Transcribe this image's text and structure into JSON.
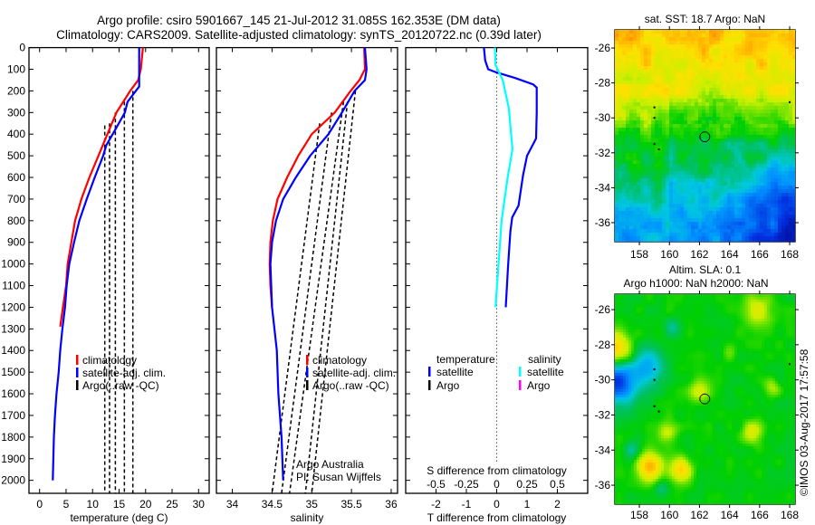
{
  "title": {
    "line1": "Argo profile: csiro 5901667_145 21-Jul-2012 31.085S 162.353E (DM data)",
    "line2": "Climatology: CARS2009. Satellite-adjusted climatology: synTS_20120722.nc (0.39d later)"
  },
  "watermark": "©IMOS 03-Aug-2017 17:57:58",
  "credits": {
    "line1": "Argo Australia",
    "line2": "PI: Susan Wijffels"
  },
  "chart_data": [
    {
      "id": "temperature",
      "type": "line",
      "xlabel": "temperature (deg C)",
      "ylabel": "",
      "xlim": [
        -2,
        32
      ],
      "ylim": [
        0,
        2060
      ],
      "xticks": [
        "0",
        "5",
        "10",
        "15",
        "20",
        "25",
        "30"
      ],
      "xtick_values": [
        0,
        5,
        10,
        15,
        20,
        25,
        30
      ],
      "yticks": [
        "0",
        "100",
        "200",
        "300",
        "400",
        "500",
        "600",
        "700",
        "800",
        "900",
        "1000",
        "1100",
        "1200",
        "1300",
        "1400",
        "1500",
        "1600",
        "1700",
        "1800",
        "1900",
        "2000"
      ],
      "ytick_values": [
        0,
        100,
        200,
        300,
        400,
        500,
        600,
        700,
        800,
        900,
        1000,
        1100,
        1200,
        1300,
        1400,
        1500,
        1600,
        1700,
        1800,
        1900,
        2000
      ],
      "series": [
        {
          "name": "climatology",
          "color": "#ff0000",
          "depth": [
            0,
            100,
            150,
            200,
            300,
            400,
            500,
            600,
            700,
            800,
            900,
            1000,
            1100,
            1200,
            1290
          ],
          "values": [
            19.5,
            19.1,
            18.6,
            17.1,
            14.5,
            12.8,
            11.1,
            9.4,
            7.9,
            6.7,
            6.0,
            5.3,
            5.0,
            4.4,
            3.9
          ]
        },
        {
          "name": "satellite-adj. clim.",
          "color": "#0000ff",
          "depth": [
            0,
            180,
            250,
            300,
            400,
            450,
            500,
            600,
            700,
            800,
            900,
            1000,
            1100,
            1200,
            1300,
            1400,
            1500,
            1600,
            1700,
            1800,
            1900,
            2000
          ],
          "values": [
            18.8,
            18.8,
            16.6,
            16.1,
            13.8,
            12.6,
            12.0,
            10.4,
            8.9,
            7.5,
            6.5,
            5.6,
            5.1,
            4.8,
            4.3,
            3.9,
            3.6,
            3.2,
            2.9,
            2.7,
            2.6,
            2.5
          ]
        }
      ],
      "argo": [
        {
          "depth": [
            360,
            2060
          ],
          "values": [
            12.3,
            12.3
          ]
        },
        {
          "depth": [
            350,
            2060
          ],
          "values": [
            13.2,
            13.2
          ]
        },
        {
          "depth": [
            300,
            2060
          ],
          "values": [
            14.3,
            14.3
          ]
        },
        {
          "depth": [
            250,
            2060
          ],
          "values": [
            16.0,
            16.0
          ]
        },
        {
          "depth": [
            200,
            2060
          ],
          "values": [
            17.6,
            17.6
          ]
        }
      ],
      "legend": [
        {
          "label": "climatology",
          "color": "#ff0000"
        },
        {
          "label": "satellite-adj. clim.",
          "color": "#0000ff"
        },
        {
          "label": "Argo(..raw -QC)",
          "color": "#000000"
        }
      ]
    },
    {
      "id": "salinity",
      "type": "line",
      "xlabel": "salinity",
      "xlim": [
        33.8,
        36.08
      ],
      "ylim": [
        0,
        2060
      ],
      "xticks": [
        "34",
        "34.5",
        "35",
        "35.5",
        "36"
      ],
      "xtick_values": [
        34,
        34.5,
        35,
        35.5,
        36
      ],
      "series": [
        {
          "name": "climatology",
          "color": "#ff0000",
          "depth": [
            0,
            100,
            150,
            200,
            300,
            400,
            500,
            600,
            700,
            800,
            900,
            1000,
            1100,
            1200
          ],
          "values": [
            35.66,
            35.67,
            35.6,
            35.49,
            35.29,
            35.0,
            34.83,
            34.69,
            34.57,
            34.51,
            34.48,
            34.47,
            34.48,
            34.5
          ]
        },
        {
          "name": "satellite-adj. clim.",
          "color": "#0000ff",
          "depth": [
            0,
            100,
            150,
            200,
            300,
            400,
            500,
            600,
            700,
            800,
            900,
            1000,
            1200,
            1400,
            1600,
            1800,
            2000
          ],
          "values": [
            35.67,
            35.69,
            35.67,
            35.54,
            35.38,
            35.21,
            34.98,
            34.8,
            34.64,
            34.55,
            34.5,
            34.48,
            34.5,
            34.56,
            34.58,
            34.62,
            34.64
          ]
        }
      ],
      "argo": [
        {
          "depth": [
            350,
            2060
          ],
          "values": [
            35.1,
            34.5
          ]
        },
        {
          "depth": [
            300,
            2060
          ],
          "values": [
            35.25,
            34.62
          ]
        },
        {
          "depth": [
            250,
            2060
          ],
          "values": [
            35.4,
            34.72
          ]
        },
        {
          "depth": [
            250,
            2060
          ],
          "values": [
            35.45,
            34.92
          ]
        },
        {
          "depth": [
            200,
            2060
          ],
          "values": [
            35.55,
            35.0
          ]
        }
      ],
      "legend": [
        {
          "label": "climatology",
          "color": "#ff0000"
        },
        {
          "label": "satellite-adj. clim.",
          "color": "#0000ff"
        },
        {
          "label": "Argo(..raw -QC)",
          "color": "#000000"
        }
      ]
    },
    {
      "id": "difference",
      "type": "line",
      "xlabel": "T difference from climatology",
      "xlabel2": "S difference from climatology",
      "xlim": [
        -3,
        3
      ],
      "xlim2": [
        -0.75,
        0.75
      ],
      "ylim": [
        0,
        2060
      ],
      "xticks": [
        "-2",
        "-1",
        "0",
        "1",
        "2"
      ],
      "xtick_values": [
        -2,
        -1,
        0,
        1,
        2
      ],
      "xticks2": [
        "-0.5",
        "-0.25",
        "0",
        "0.25",
        "0.5"
      ],
      "xtick_values2": [
        -0.5,
        -0.25,
        0,
        0.25,
        0.5
      ],
      "series": [
        {
          "name": "temperature satellite",
          "color": "#0000ff",
          "axis": "T",
          "depth": [
            0,
            60,
            100,
            115,
            140,
            170,
            185,
            300,
            420,
            500,
            590,
            730,
            785,
            850,
            1000,
            1200
          ],
          "values": [
            -0.42,
            -0.38,
            -0.28,
            0.0,
            0.6,
            1.2,
            1.32,
            1.32,
            1.3,
            1.0,
            0.87,
            0.72,
            0.51,
            0.45,
            0.38,
            0.3
          ]
        },
        {
          "name": "salinity satellite",
          "color": "#00ffff",
          "axis": "S",
          "depth": [
            0,
            80,
            150,
            280,
            470,
            600,
            800,
            1000,
            1200
          ],
          "values": [
            -0.015,
            -0.01,
            0.05,
            0.1,
            0.13,
            0.09,
            0.04,
            0.015,
            -0.01
          ]
        }
      ],
      "legend": {
        "temperature_header": "temperature",
        "salinity_header": "salinity",
        "items": [
          {
            "label": "satellite",
            "color": "#0000ff"
          },
          {
            "label": "Argo",
            "color": "#000000"
          },
          {
            "label": "satellite",
            "color": "#00ffff"
          },
          {
            "label": "Argo",
            "color": "#ff00ff"
          }
        ]
      }
    },
    {
      "id": "sst_map",
      "type": "heatmap",
      "title": "sat. SST: 18.7 Argo: NaN",
      "xlim": [
        156.37,
        168.36
      ],
      "ylim": [
        -37.09,
        -24.96
      ],
      "xticks": [
        "158",
        "160",
        "162",
        "164",
        "166",
        "168"
      ],
      "xtick_values": [
        158,
        160,
        162,
        164,
        166,
        168
      ],
      "yticks": [
        "-26",
        "-28",
        "-30",
        "-32",
        "-34",
        "-36"
      ],
      "ytick_values": [
        -26,
        -28,
        -30,
        -32,
        -34,
        -36
      ],
      "marker": {
        "lon": 162.353,
        "lat": -31.085
      }
    },
    {
      "id": "sla_map",
      "type": "heatmap",
      "title": "Altim. SLA: 0.1",
      "subtitle": "Argo h1000: NaN h2000: NaN",
      "xlim": [
        156.37,
        168.36
      ],
      "ylim": [
        -37.08,
        -25.12
      ],
      "xticks": [
        "158",
        "160",
        "162",
        "164",
        "166",
        "168"
      ],
      "xtick_values": [
        158,
        160,
        162,
        164,
        166,
        168
      ],
      "yticks": [
        "-26",
        "-28",
        "-30",
        "-32",
        "-34",
        "-36"
      ],
      "ytick_values": [
        -26,
        -28,
        -30,
        -32,
        -34,
        -36
      ],
      "marker": {
        "lon": 162.353,
        "lat": -31.085
      }
    }
  ]
}
